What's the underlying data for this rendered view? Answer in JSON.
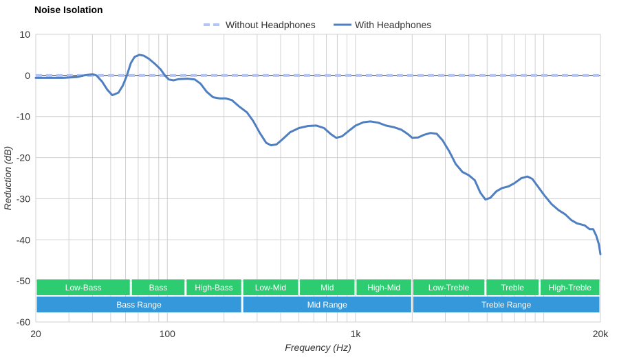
{
  "chart_data": {
    "type": "line",
    "title": "Noise Isolation",
    "xlabel": "Frequency (Hz)",
    "ylabel": "Reduction (dB)",
    "x_scale": "log",
    "xlim": [
      20,
      20000
    ],
    "ylim": [
      -60,
      10
    ],
    "x_ticks": [
      {
        "value": 20,
        "label": "20"
      },
      {
        "value": 100,
        "label": "100"
      },
      {
        "value": 1000,
        "label": "1k"
      },
      {
        "value": 20000,
        "label": "20k"
      }
    ],
    "x_grid": [
      20,
      30,
      40,
      50,
      60,
      70,
      80,
      90,
      100,
      200,
      300,
      400,
      500,
      600,
      700,
      800,
      900,
      1000,
      2000,
      3000,
      4000,
      5000,
      6000,
      7000,
      8000,
      9000,
      10000,
      20000
    ],
    "y_ticks": [
      10,
      0,
      -10,
      -20,
      -30,
      -40,
      -50,
      -60
    ],
    "grid": true,
    "legend_position": "top",
    "series": [
      {
        "name": "Without Headphones",
        "style": "dashed",
        "color": "#b3c4f5",
        "points": [
          [
            20,
            0
          ],
          [
            20000,
            0
          ]
        ]
      },
      {
        "name": "With Headphones",
        "style": "solid",
        "color": "#4f7fc0",
        "points": [
          [
            20,
            -0.6
          ],
          [
            25,
            -0.6
          ],
          [
            28,
            -0.6
          ],
          [
            33,
            -0.4
          ],
          [
            36,
            0.0
          ],
          [
            40,
            0.3
          ],
          [
            42,
            0.0
          ],
          [
            45,
            -1.5
          ],
          [
            48,
            -3.5
          ],
          [
            51,
            -4.8
          ],
          [
            55,
            -4.2
          ],
          [
            58,
            -2.5
          ],
          [
            61,
            0.0
          ],
          [
            64,
            3.0
          ],
          [
            67,
            4.5
          ],
          [
            71,
            5.0
          ],
          [
            75,
            4.8
          ],
          [
            80,
            4.0
          ],
          [
            86,
            2.8
          ],
          [
            92,
            1.5
          ],
          [
            97,
            0.0
          ],
          [
            102,
            -1.0
          ],
          [
            108,
            -1.2
          ],
          [
            115,
            -0.9
          ],
          [
            128,
            -0.8
          ],
          [
            140,
            -1.0
          ],
          [
            150,
            -2.0
          ],
          [
            162,
            -4.0
          ],
          [
            175,
            -5.3
          ],
          [
            190,
            -5.6
          ],
          [
            205,
            -5.6
          ],
          [
            220,
            -6.0
          ],
          [
            240,
            -7.5
          ],
          [
            265,
            -9.0
          ],
          [
            285,
            -11.0
          ],
          [
            310,
            -14.0
          ],
          [
            335,
            -16.4
          ],
          [
            355,
            -17.0
          ],
          [
            380,
            -16.8
          ],
          [
            410,
            -15.5
          ],
          [
            450,
            -13.8
          ],
          [
            500,
            -12.8
          ],
          [
            560,
            -12.3
          ],
          [
            620,
            -12.2
          ],
          [
            680,
            -12.8
          ],
          [
            740,
            -14.3
          ],
          [
            790,
            -15.2
          ],
          [
            850,
            -14.8
          ],
          [
            920,
            -13.5
          ],
          [
            1000,
            -12.2
          ],
          [
            1100,
            -11.4
          ],
          [
            1200,
            -11.2
          ],
          [
            1320,
            -11.5
          ],
          [
            1450,
            -12.2
          ],
          [
            1600,
            -12.6
          ],
          [
            1750,
            -13.2
          ],
          [
            1900,
            -14.3
          ],
          [
            2000,
            -15.2
          ],
          [
            2150,
            -15.1
          ],
          [
            2300,
            -14.5
          ],
          [
            2500,
            -14.0
          ],
          [
            2700,
            -14.2
          ],
          [
            2900,
            -15.8
          ],
          [
            3150,
            -18.5
          ],
          [
            3400,
            -21.5
          ],
          [
            3700,
            -23.5
          ],
          [
            4000,
            -24.3
          ],
          [
            4300,
            -25.5
          ],
          [
            4600,
            -28.5
          ],
          [
            4900,
            -30.2
          ],
          [
            5200,
            -29.8
          ],
          [
            5600,
            -28.2
          ],
          [
            6000,
            -27.4
          ],
          [
            6500,
            -27.0
          ],
          [
            7000,
            -26.2
          ],
          [
            7600,
            -25.0
          ],
          [
            8200,
            -24.6
          ],
          [
            8700,
            -25.2
          ],
          [
            9300,
            -27.0
          ],
          [
            10000,
            -29.0
          ],
          [
            11000,
            -31.3
          ],
          [
            12000,
            -32.8
          ],
          [
            13000,
            -33.8
          ],
          [
            14000,
            -35.2
          ],
          [
            15000,
            -36.0
          ],
          [
            16500,
            -36.5
          ],
          [
            17500,
            -37.4
          ],
          [
            18300,
            -37.4
          ],
          [
            19000,
            -39.0
          ],
          [
            19600,
            -41.0
          ],
          [
            20000,
            -43.5
          ]
        ]
      }
    ],
    "bands": [
      {
        "label": "Low-Bass",
        "start": 20,
        "end": 64,
        "row": 1,
        "color": "#2ecc71"
      },
      {
        "label": "Bass",
        "start": 64,
        "end": 125,
        "row": 1,
        "color": "#2ecc71"
      },
      {
        "label": "High-Bass",
        "start": 125,
        "end": 250,
        "row": 1,
        "color": "#2ecc71"
      },
      {
        "label": "Low-Mid",
        "start": 250,
        "end": 500,
        "row": 1,
        "color": "#2ecc71"
      },
      {
        "label": "Mid",
        "start": 500,
        "end": 1000,
        "row": 1,
        "color": "#2ecc71"
      },
      {
        "label": "High-Mid",
        "start": 1000,
        "end": 2000,
        "row": 1,
        "color": "#2ecc71"
      },
      {
        "label": "Low-Treble",
        "start": 2000,
        "end": 4900,
        "row": 1,
        "color": "#2ecc71"
      },
      {
        "label": "Treble",
        "start": 4900,
        "end": 9500,
        "row": 1,
        "color": "#2ecc71"
      },
      {
        "label": "High-Treble",
        "start": 9500,
        "end": 20000,
        "row": 1,
        "color": "#2ecc71"
      },
      {
        "label": "Bass Range",
        "start": 20,
        "end": 250,
        "row": 2,
        "color": "#3498db"
      },
      {
        "label": "Mid Range",
        "start": 250,
        "end": 2000,
        "row": 2,
        "color": "#3498db"
      },
      {
        "label": "Treble Range",
        "start": 2000,
        "end": 20000,
        "row": 2,
        "color": "#3498db"
      }
    ]
  }
}
